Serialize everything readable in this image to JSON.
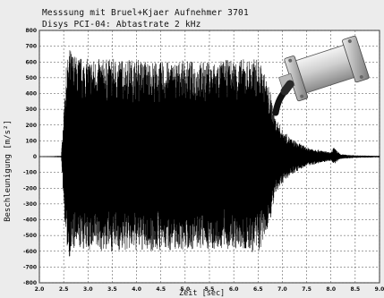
{
  "chart_data": {
    "type": "line",
    "title_lines": [
      "Messsung mit Bruel+Kjaer Aufnehmer 3701",
      "Disys PCI-04: Abtastrate 2 kHz"
    ],
    "xlabel": "Zeit [sec]",
    "ylabel": "Beschleunigung [m/s²]",
    "xlim": [
      2.0,
      9.0
    ],
    "ylim": [
      -800,
      800
    ],
    "x_ticks": [
      "2.0",
      "2.5",
      "3.0",
      "3.5",
      "4.0",
      "4.5",
      "5.0",
      "5.5",
      "6.0",
      "6.5",
      "7.0",
      "7.5",
      "8.0",
      "8.5",
      "9.0"
    ],
    "y_ticks": [
      "800",
      "700",
      "600",
      "500",
      "400",
      "300",
      "200",
      "100",
      "0",
      "-100",
      "-200",
      "-300",
      "-400",
      "-500",
      "-600",
      "-700",
      "-800"
    ],
    "grid": true,
    "series": [
      {
        "color": "#000000",
        "envelope_x": [
          2.0,
          2.45,
          2.55,
          2.62,
          2.75,
          3.0,
          3.5,
          4.0,
          4.5,
          5.0,
          5.5,
          6.0,
          6.5,
          6.6,
          6.75,
          6.85,
          7.0,
          7.2,
          7.5,
          7.8,
          8.0,
          8.05,
          8.2,
          8.5,
          9.0
        ],
        "envelope_max": [
          0,
          5,
          560,
          690,
          640,
          620,
          620,
          620,
          600,
          610,
          600,
          620,
          620,
          560,
          420,
          260,
          170,
          110,
          60,
          40,
          25,
          60,
          15,
          8,
          5
        ],
        "envelope_min": [
          0,
          -5,
          -560,
          -640,
          -580,
          -600,
          -600,
          -600,
          -600,
          -590,
          -590,
          -590,
          -620,
          -560,
          -400,
          -260,
          -170,
          -110,
          -60,
          -40,
          -25,
          -50,
          -15,
          -8,
          -5
        ]
      }
    ]
  },
  "image": {
    "name": "sensor-photo",
    "description_label": "Accelerometer sensor with cable"
  }
}
